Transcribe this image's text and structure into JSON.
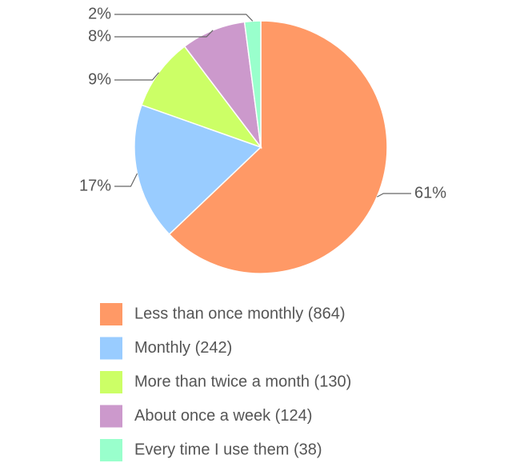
{
  "chart_data": {
    "type": "pie",
    "categories": [
      "Less than once monthly (864)",
      "Monthly (242)",
      "More than twice a month (130)",
      "About once a week (124)",
      "Every time I use them (38)"
    ],
    "values": [
      61,
      17,
      9,
      8,
      2
    ],
    "value_labels": [
      "61%",
      "17%",
      "9%",
      "8%",
      "2%"
    ],
    "colors": [
      "#ff9966",
      "#99ccff",
      "#ccff66",
      "#cc99cc",
      "#99ffcc"
    ]
  }
}
